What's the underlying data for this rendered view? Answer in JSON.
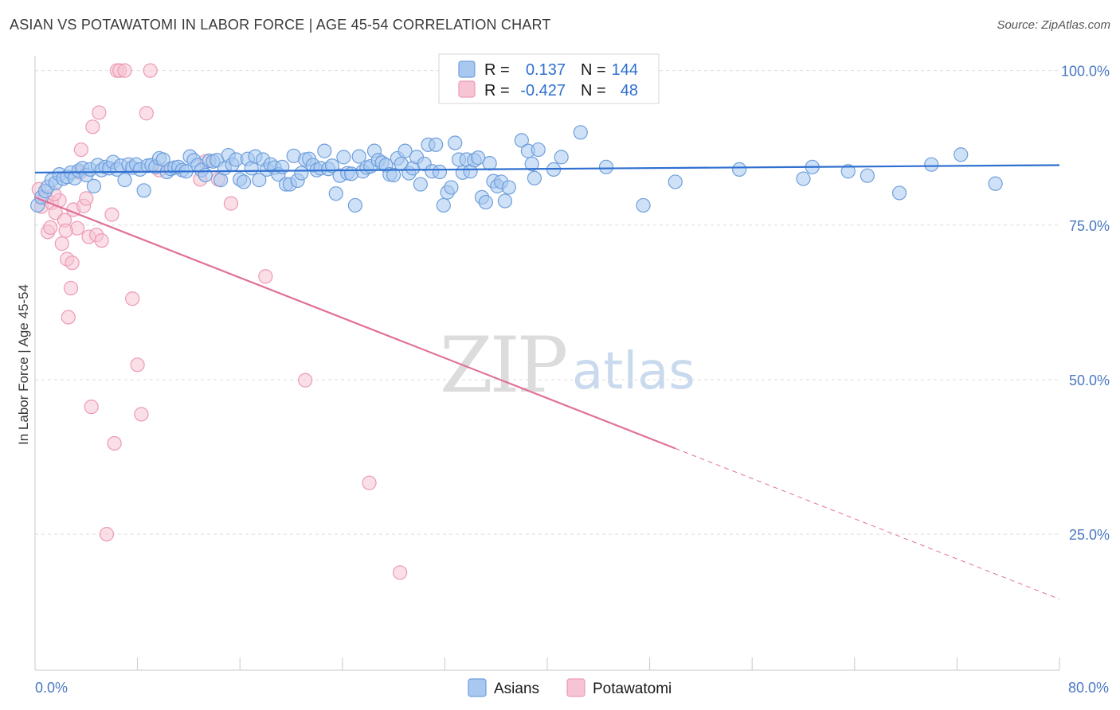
{
  "header": {
    "title": "ASIAN VS POTAWATOMI IN LABOR FORCE | AGE 45-54 CORRELATION CHART",
    "source": "Source: ZipAtlas.com"
  },
  "watermark": {
    "zip": "ZIP",
    "atlas": "atlas"
  },
  "colors": {
    "asian_fill": "#a8c8f0",
    "asian_stroke": "#6f9fdc",
    "asian_line": "#2f6fd0",
    "pota_fill": "#f7c4d4",
    "pota_stroke": "#ec9ab5",
    "pota_line": "#e0709a",
    "grid": "#dddddd",
    "axis_text": "#4a78c4"
  },
  "legend": {
    "r_label": "R =",
    "n_label": "N =",
    "rows": [
      {
        "series": "Asians",
        "r": "0.137",
        "n": "144"
      },
      {
        "series": "Potawatomi",
        "r": "-0.427",
        "n": "48"
      }
    ]
  },
  "chart_data": {
    "type": "scatter",
    "title": "ASIAN VS POTAWATOMI IN LABOR FORCE | AGE 45-54 CORRELATION CHART",
    "xlabel": "",
    "ylabel": "In Labor Force | Age 45-54",
    "xlim": [
      0,
      80
    ],
    "ylim": [
      3,
      102.4
    ],
    "x_tick_labels": [
      "0.0%",
      "80.0%"
    ],
    "y_ticks": [
      25,
      50,
      75,
      100
    ],
    "y_tick_labels": [
      "25.0%",
      "50.0%",
      "75.0%",
      "100.0%"
    ],
    "grid": true,
    "series": [
      {
        "name": "Asians",
        "trend": {
          "x": [
            0,
            80
          ],
          "y": [
            83.5,
            84.7
          ],
          "dashed_from": null
        },
        "points": [
          [
            0.2,
            78.2
          ],
          [
            0.5,
            79.5
          ],
          [
            0.8,
            80.5
          ],
          [
            1.0,
            81.2
          ],
          [
            1.3,
            82.3
          ],
          [
            1.6,
            81.8
          ],
          [
            1.9,
            83.2
          ],
          [
            2.2,
            82.5
          ],
          [
            2.5,
            82.8
          ],
          [
            2.8,
            83.5
          ],
          [
            3.1,
            82.6
          ],
          [
            3.4,
            83.8
          ],
          [
            3.7,
            84.2
          ],
          [
            4.0,
            83.1
          ],
          [
            4.3,
            84.0
          ],
          [
            4.6,
            81.3
          ],
          [
            4.9,
            84.7
          ],
          [
            5.2,
            83.9
          ],
          [
            5.5,
            84.4
          ],
          [
            5.8,
            84.2
          ],
          [
            6.1,
            85.2
          ],
          [
            6.4,
            84.0
          ],
          [
            6.7,
            84.6
          ],
          [
            7.0,
            82.3
          ],
          [
            7.3,
            84.8
          ],
          [
            7.6,
            84.3
          ],
          [
            7.9,
            84.8
          ],
          [
            8.2,
            84.0
          ],
          [
            8.5,
            80.6
          ],
          [
            8.8,
            84.6
          ],
          [
            9.1,
            84.7
          ],
          [
            9.4,
            84.4
          ],
          [
            9.7,
            85.8
          ],
          [
            10.0,
            85.6
          ],
          [
            10.3,
            83.6
          ],
          [
            10.6,
            84.1
          ],
          [
            10.9,
            84.3
          ],
          [
            11.2,
            84.4
          ],
          [
            11.5,
            83.9
          ],
          [
            11.8,
            83.7
          ],
          [
            12.1,
            86.1
          ],
          [
            12.4,
            85.5
          ],
          [
            12.7,
            84.7
          ],
          [
            13.0,
            83.9
          ],
          [
            13.3,
            83.1
          ],
          [
            13.6,
            85.4
          ],
          [
            13.9,
            85.3
          ],
          [
            14.2,
            85.5
          ],
          [
            14.5,
            82.3
          ],
          [
            14.8,
            84.2
          ],
          [
            15.1,
            86.3
          ],
          [
            15.4,
            84.8
          ],
          [
            15.7,
            85.6
          ],
          [
            16.0,
            82.4
          ],
          [
            16.3,
            82.0
          ],
          [
            16.6,
            85.7
          ],
          [
            16.9,
            84.2
          ],
          [
            17.2,
            86.1
          ],
          [
            17.5,
            82.3
          ],
          [
            17.8,
            85.6
          ],
          [
            18.1,
            84.0
          ],
          [
            18.4,
            84.8
          ],
          [
            18.7,
            84.3
          ],
          [
            19.0,
            83.2
          ],
          [
            19.3,
            84.4
          ],
          [
            19.6,
            81.6
          ],
          [
            19.9,
            81.6
          ],
          [
            20.2,
            86.2
          ],
          [
            20.5,
            82.2
          ],
          [
            20.8,
            83.4
          ],
          [
            21.1,
            85.6
          ],
          [
            21.4,
            85.7
          ],
          [
            21.7,
            84.7
          ],
          [
            22.0,
            83.9
          ],
          [
            22.3,
            84.2
          ],
          [
            22.6,
            87.0
          ],
          [
            22.9,
            84.1
          ],
          [
            23.2,
            84.6
          ],
          [
            23.5,
            80.1
          ],
          [
            23.8,
            83.0
          ],
          [
            24.1,
            86.0
          ],
          [
            24.4,
            83.4
          ],
          [
            24.7,
            83.3
          ],
          [
            25.0,
            78.2
          ],
          [
            25.3,
            86.1
          ],
          [
            25.6,
            83.7
          ],
          [
            25.9,
            84.3
          ],
          [
            26.2,
            84.5
          ],
          [
            26.5,
            87.0
          ],
          [
            26.8,
            85.5
          ],
          [
            27.1,
            85.1
          ],
          [
            27.4,
            84.7
          ],
          [
            27.7,
            83.2
          ],
          [
            28.0,
            83.1
          ],
          [
            28.3,
            85.8
          ],
          [
            28.6,
            84.9
          ],
          [
            28.9,
            87.0
          ],
          [
            29.2,
            83.4
          ],
          [
            29.5,
            84.2
          ],
          [
            29.8,
            86.0
          ],
          [
            30.1,
            81.6
          ],
          [
            30.4,
            84.9
          ],
          [
            30.7,
            88.0
          ],
          [
            31.0,
            83.7
          ],
          [
            31.3,
            88.0
          ],
          [
            31.6,
            83.6
          ],
          [
            31.9,
            78.2
          ],
          [
            32.2,
            80.3
          ],
          [
            32.5,
            81.1
          ],
          [
            32.8,
            88.3
          ],
          [
            33.1,
            85.6
          ],
          [
            33.4,
            83.5
          ],
          [
            33.7,
            85.6
          ],
          [
            34.0,
            83.7
          ],
          [
            34.3,
            85.5
          ],
          [
            34.6,
            85.9
          ],
          [
            34.9,
            79.5
          ],
          [
            35.2,
            78.7
          ],
          [
            35.5,
            85.0
          ],
          [
            35.8,
            82.1
          ],
          [
            36.1,
            81.3
          ],
          [
            36.4,
            82.0
          ],
          [
            36.7,
            78.9
          ],
          [
            37.0,
            81.1
          ],
          [
            38.0,
            88.7
          ],
          [
            38.5,
            87.0
          ],
          [
            38.8,
            84.9
          ],
          [
            39.0,
            82.6
          ],
          [
            39.3,
            87.2
          ],
          [
            40.5,
            84.0
          ],
          [
            41.1,
            86.0
          ],
          [
            42.6,
            90.0
          ],
          [
            44.6,
            84.4
          ],
          [
            47.5,
            78.2
          ],
          [
            50.0,
            82.0
          ],
          [
            55.0,
            84.0
          ],
          [
            60.0,
            82.5
          ],
          [
            65.0,
            83.0
          ],
          [
            70.0,
            84.8
          ],
          [
            75.0,
            81.7
          ],
          [
            60.7,
            84.4
          ],
          [
            63.5,
            83.7
          ],
          [
            67.5,
            80.2
          ],
          [
            72.3,
            86.4
          ]
        ]
      },
      {
        "name": "Potawatomi",
        "trend": {
          "x": [
            0,
            80
          ],
          "y": [
            79.5,
            14.5
          ],
          "dashed_from": 50
        },
        "points": [
          [
            0.3,
            80.8
          ],
          [
            0.5,
            78.0
          ],
          [
            0.8,
            79.5
          ],
          [
            1.0,
            73.9
          ],
          [
            1.2,
            74.6
          ],
          [
            1.3,
            78.6
          ],
          [
            1.6,
            77.0
          ],
          [
            1.9,
            79.0
          ],
          [
            2.1,
            72.0
          ],
          [
            2.3,
            75.8
          ],
          [
            2.5,
            69.5
          ],
          [
            2.6,
            60.1
          ],
          [
            2.8,
            64.8
          ],
          [
            2.9,
            68.9
          ],
          [
            3.0,
            77.5
          ],
          [
            3.3,
            74.5
          ],
          [
            3.5,
            83.5
          ],
          [
            3.6,
            87.2
          ],
          [
            3.8,
            78.1
          ],
          [
            4.2,
            73.1
          ],
          [
            4.4,
            45.6
          ],
          [
            4.5,
            90.9
          ],
          [
            4.8,
            73.4
          ],
          [
            5.0,
            93.2
          ],
          [
            5.2,
            72.5
          ],
          [
            5.6,
            25.0
          ],
          [
            6.0,
            76.7
          ],
          [
            6.4,
            100.0
          ],
          [
            6.6,
            100.0
          ],
          [
            7.0,
            100.0
          ],
          [
            7.6,
            63.1
          ],
          [
            8.0,
            52.4
          ],
          [
            8.3,
            44.4
          ],
          [
            8.7,
            93.1
          ],
          [
            9.0,
            100.0
          ],
          [
            9.7,
            83.9
          ],
          [
            12.9,
            82.4
          ],
          [
            13.3,
            85.3
          ],
          [
            14.3,
            82.4
          ],
          [
            15.3,
            78.5
          ],
          [
            18.0,
            66.7
          ],
          [
            21.1,
            49.9
          ],
          [
            26.1,
            33.3
          ],
          [
            28.5,
            18.8
          ],
          [
            6.2,
            39.7
          ],
          [
            4.0,
            79.3
          ],
          [
            2.4,
            74.1
          ],
          [
            1.5,
            80.0
          ]
        ]
      }
    ]
  }
}
